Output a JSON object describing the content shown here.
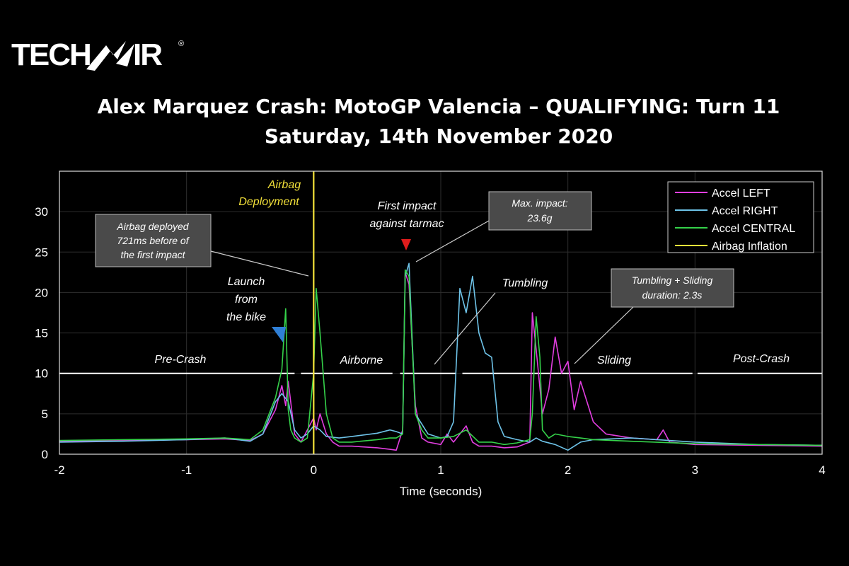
{
  "logo": {
    "left": "TECH",
    "right": "IR",
    "reg": "®"
  },
  "title": {
    "line1": "Alex Marquez Crash: MotoGP Valencia – QUALIFYING: Turn 11",
    "line2": "Saturday, 14th November 2020"
  },
  "chart_data": {
    "type": "line",
    "xlabel": "Time (seconds)",
    "ylabel": "",
    "xlim": [
      -2,
      4
    ],
    "ylim": [
      0,
      35
    ],
    "xticks": [
      -2,
      -1,
      0,
      1,
      2,
      3,
      4
    ],
    "yticks": [
      0,
      5,
      10,
      15,
      20,
      25,
      30
    ],
    "grid": true,
    "legend_position": "top-right",
    "series": [
      {
        "name": "Accel LEFT",
        "color": "#e23ee0",
        "x": [
          -2,
          -1.5,
          -1,
          -0.7,
          -0.5,
          -0.4,
          -0.3,
          -0.25,
          -0.22,
          -0.2,
          -0.15,
          -0.1,
          -0.05,
          0,
          0.02,
          0.05,
          0.1,
          0.15,
          0.2,
          0.3,
          0.5,
          0.6,
          0.65,
          0.7,
          0.72,
          0.75,
          0.8,
          0.85,
          0.9,
          1.0,
          1.05,
          1.1,
          1.15,
          1.2,
          1.25,
          1.3,
          1.4,
          1.5,
          1.6,
          1.7,
          1.72,
          1.75,
          1.8,
          1.85,
          1.9,
          1.95,
          2.0,
          2.05,
          2.1,
          2.2,
          2.3,
          2.5,
          2.7,
          2.75,
          2.8,
          3.0,
          3.5,
          4.0
        ],
        "values": [
          1.6,
          1.7,
          1.8,
          1.9,
          1.7,
          2.5,
          5.5,
          8.5,
          6.0,
          9.0,
          2.5,
          1.5,
          3.0,
          4.5,
          3.0,
          5.0,
          2.5,
          1.5,
          1.0,
          1.0,
          0.8,
          0.6,
          0.5,
          3.0,
          22.5,
          21.0,
          6.0,
          2.0,
          1.5,
          1.2,
          2.5,
          1.5,
          2.5,
          3.5,
          1.5,
          1.0,
          1.0,
          0.8,
          0.9,
          1.5,
          17.5,
          13.0,
          5.0,
          8.0,
          14.5,
          10.0,
          11.5,
          5.5,
          9.0,
          4.0,
          2.5,
          2.0,
          1.8,
          3.0,
          1.5,
          1.2,
          1.1,
          1.0
        ]
      },
      {
        "name": "Accel RIGHT",
        "color": "#6ec3e8",
        "x": [
          -2,
          -1.5,
          -1,
          -0.7,
          -0.5,
          -0.4,
          -0.3,
          -0.25,
          -0.2,
          -0.15,
          -0.1,
          -0.05,
          0,
          0.05,
          0.1,
          0.2,
          0.3,
          0.5,
          0.6,
          0.65,
          0.7,
          0.72,
          0.75,
          0.8,
          0.9,
          1.0,
          1.05,
          1.1,
          1.15,
          1.2,
          1.25,
          1.3,
          1.35,
          1.4,
          1.45,
          1.5,
          1.6,
          1.7,
          1.75,
          1.8,
          1.9,
          2.0,
          2.1,
          2.2,
          2.5,
          3.0,
          3.5,
          4.0
        ],
        "values": [
          1.5,
          1.6,
          1.8,
          2.0,
          1.6,
          2.5,
          6.5,
          7.5,
          6.5,
          3.0,
          2.0,
          2.5,
          3.5,
          3.0,
          2.2,
          2.0,
          2.2,
          2.6,
          3.0,
          2.8,
          2.5,
          22.0,
          23.6,
          5.0,
          2.5,
          2.0,
          2.2,
          4.0,
          20.5,
          17.5,
          22.0,
          15.0,
          12.5,
          12.0,
          4.0,
          2.2,
          1.8,
          1.5,
          2.0,
          1.6,
          1.2,
          0.5,
          1.5,
          1.8,
          2.0,
          1.5,
          1.2,
          1.1
        ]
      },
      {
        "name": "Accel CENTRAL",
        "color": "#35d24a",
        "x": [
          -2,
          -1.5,
          -1,
          -0.7,
          -0.5,
          -0.4,
          -0.35,
          -0.3,
          -0.25,
          -0.22,
          -0.2,
          -0.18,
          -0.15,
          -0.1,
          -0.05,
          0,
          0.02,
          0.05,
          0.1,
          0.15,
          0.2,
          0.3,
          0.5,
          0.6,
          0.65,
          0.7,
          0.72,
          0.75,
          0.8,
          0.85,
          0.9,
          1.0,
          1.1,
          1.2,
          1.3,
          1.4,
          1.5,
          1.6,
          1.7,
          1.72,
          1.75,
          1.78,
          1.8,
          1.85,
          1.9,
          2.0,
          2.1,
          2.2,
          2.5,
          3.0,
          3.5,
          4.0
        ],
        "values": [
          1.7,
          1.8,
          1.9,
          2.0,
          1.8,
          3.0,
          5.0,
          7.0,
          10.5,
          18.0,
          5.5,
          3.0,
          2.0,
          1.5,
          2.0,
          10.0,
          20.5,
          15.0,
          5.0,
          2.0,
          1.5,
          1.5,
          1.8,
          2.0,
          2.0,
          2.5,
          22.8,
          22.0,
          5.0,
          3.0,
          2.0,
          2.0,
          2.2,
          3.0,
          1.5,
          1.5,
          1.2,
          1.4,
          1.8,
          5.0,
          17.0,
          12.0,
          3.0,
          2.0,
          2.5,
          2.2,
          2.0,
          1.8,
          1.6,
          1.3,
          1.2,
          1.1
        ]
      },
      {
        "name": "Airbag Inflation",
        "color": "#f4e23a",
        "x": [
          0,
          0
        ],
        "values": [
          0,
          35
        ]
      }
    ],
    "annotations": {
      "airbag_line": [
        "Airbag",
        "Deployment"
      ],
      "box_deployed": [
        "Airbag deployed",
        "721ms before of",
        "the first impact"
      ],
      "launch": [
        "Launch",
        "from",
        "the bike"
      ],
      "first_impact": [
        "First impact",
        "against tarmac"
      ],
      "box_max": [
        "Max. impact:",
        "23.6g"
      ],
      "tumbling": "Tumbling",
      "box_duration": [
        "Tumbling + Sliding",
        "duration: 2.3s"
      ],
      "phases": [
        "Pre-Crash",
        "Airborne",
        "Sliding",
        "Post-Crash"
      ]
    }
  }
}
